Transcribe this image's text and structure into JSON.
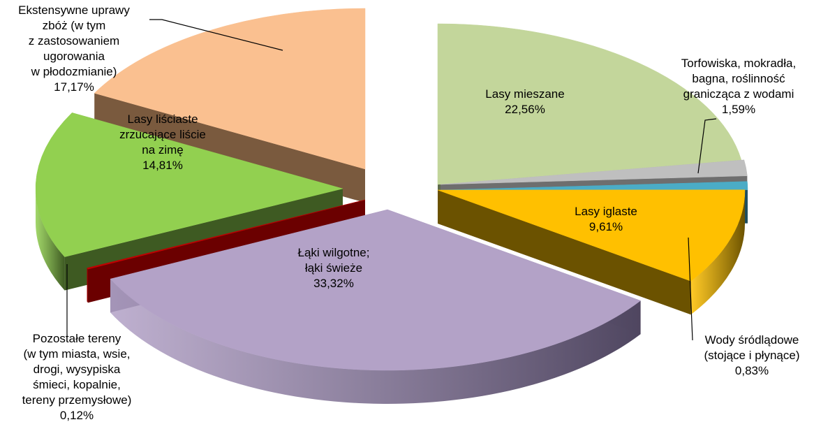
{
  "chart_data": {
    "type": "pie",
    "title": "",
    "unit": "%",
    "slices": [
      {
        "name": "Lasy mieszane",
        "value": 22.56,
        "value_label": "22,56%",
        "color": "#c3d69b",
        "side": "#5e6b4d",
        "label_lines": [
          "Lasy mieszane",
          "22,56%"
        ]
      },
      {
        "name": "Torfowiska, mokradła, bagna, roślinność granicząca z wodami",
        "value": 1.59,
        "value_label": "1,59%",
        "color": "#bfbfbf",
        "side": "#6e6e6e",
        "label_lines": [
          "Torfowiska, mokradła,",
          "bagna, roślinność",
          "granicząca z wodami",
          "1,59%"
        ]
      },
      {
        "name": "Wody śródlądowe (stojące i płynące)",
        "value": 0.83,
        "value_label": "0,83%",
        "color": "#4bacc6",
        "side": "#1f4e5f",
        "label_lines": [
          "Wody śródlądowe",
          "(stojące i płynące)",
          "0,83%"
        ]
      },
      {
        "name": "Lasy iglaste",
        "value": 9.61,
        "value_label": "9,61%",
        "color": "#ffc000",
        "side": "#6b5200",
        "label_lines": [
          "Lasy iglaste",
          "9,61%"
        ]
      },
      {
        "name": "Łąki wilgotne; łąki świeże",
        "value": 33.32,
        "value_label": "33,32%",
        "color": "#b3a2c7",
        "side": "#4f4660",
        "label_lines": [
          "Łąki wilgotne;",
          "łąki świeże",
          "33,32%"
        ]
      },
      {
        "name": "Pozostałe tereny (w tym miasta, wsie, drogi, wysypiska śmieci, kopalnie, tereny przemysłowe)",
        "value": 0.12,
        "value_label": "0,12%",
        "color": "#c00000",
        "side": "#6b0000",
        "label_lines": [
          "Pozostałe tereny",
          "(w tym miasta, wsie,",
          "drogi, wysypiska",
          "śmieci, kopalnie,",
          "tereny przemysłowe)",
          "0,12%"
        ]
      },
      {
        "name": "Lasy liściaste zrzucające liście na zimę",
        "value": 14.81,
        "value_label": "14,81%",
        "color": "#92d050",
        "side": "#3e5a22",
        "label_lines": [
          "Lasy liściaste",
          "zrzucające liście",
          "na zimę",
          "14,81%"
        ]
      },
      {
        "name": "Ekstensywne uprawy zbóż (w tym z zastosowaniem ugorowania w płodozmianie)",
        "value": 17.17,
        "value_label": "17,17%",
        "color": "#fac090",
        "side": "#7a5a3e",
        "label_lines": [
          "Ekstensywne uprawy",
          "zbóż (w tym",
          "z zastosowaniem",
          "ugorowania",
          "w płodozmianie)",
          "17,17%"
        ]
      }
    ],
    "legend": "none",
    "style": "3d-exploded"
  }
}
